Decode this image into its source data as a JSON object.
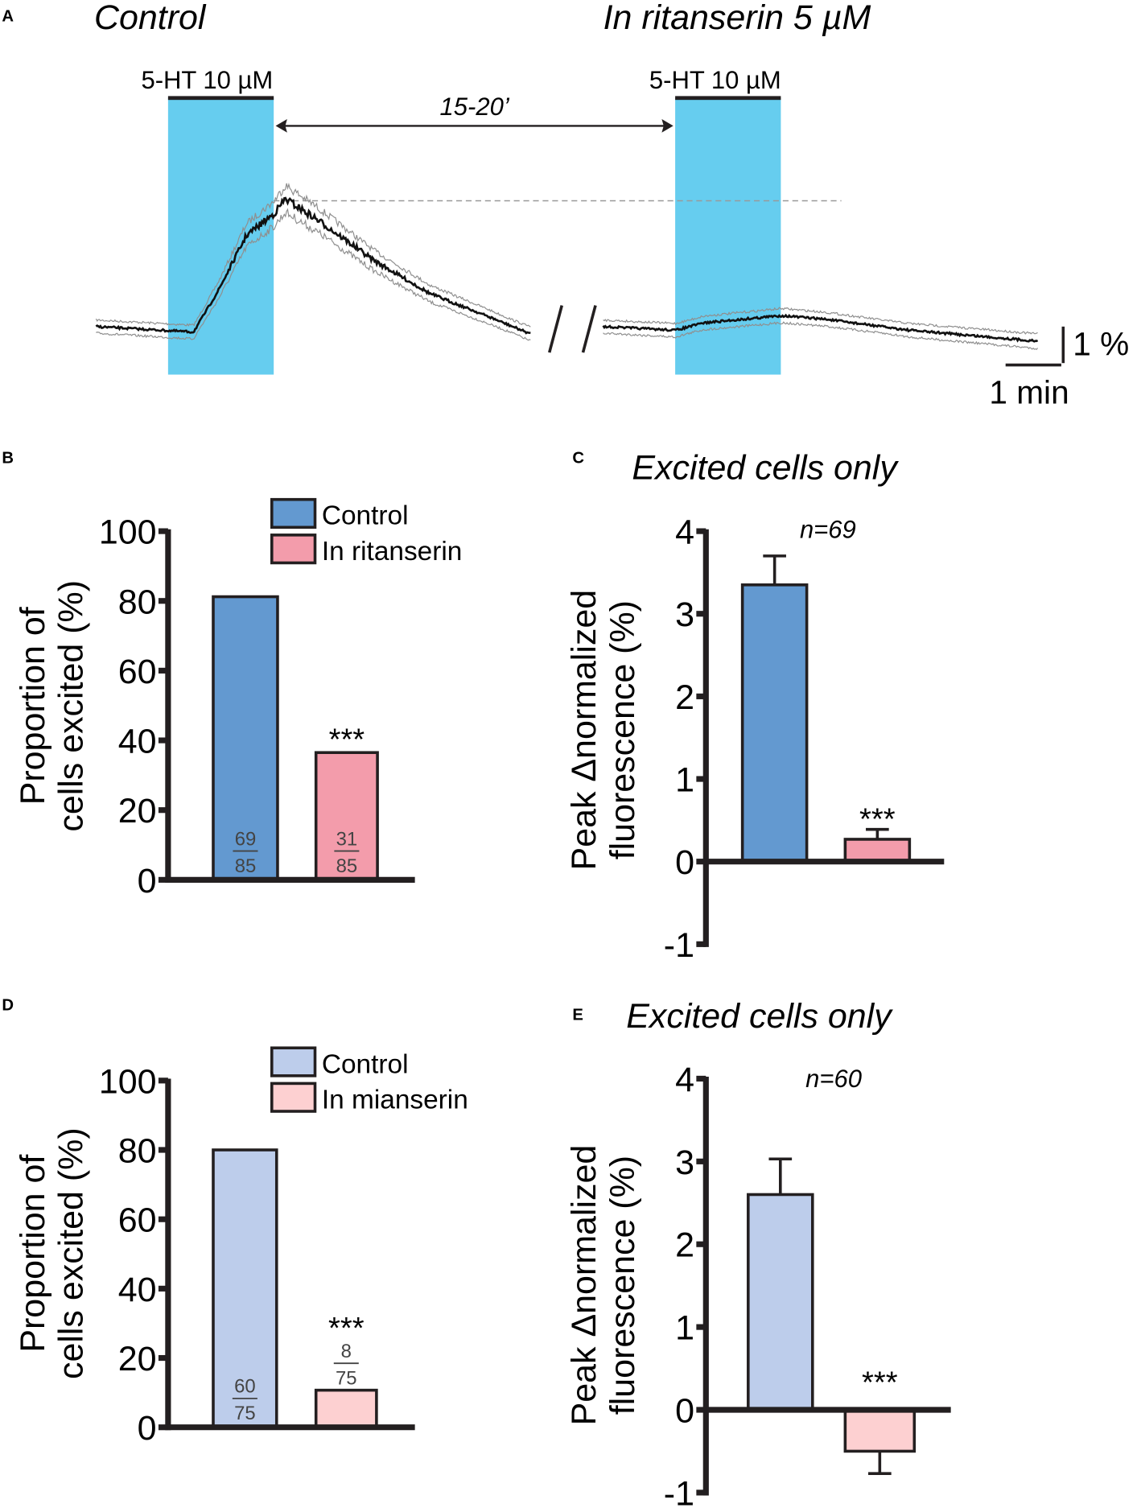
{
  "colors": {
    "cyan": "#66cdef",
    "blue": "#6399d0",
    "pink": "#f39cab",
    "lightblue": "#bdcdeb",
    "lightpink": "#fdd0d1",
    "trace": "#111111",
    "sem": "#8f8f8f"
  },
  "chart_data": [
    {
      "panel": "A",
      "type": "line",
      "panel_label": "A",
      "title_left": "Control",
      "title_right": "In ritanserin 5 µM",
      "drug_label_left": "5-HT 10 µM",
      "drug_label_right": "5-HT 10 µM",
      "interval_label": "15-20’",
      "scale_y_label": "1 %",
      "scale_x_label": "1 min",
      "break_mark": "//",
      "series": [
        {
          "name": "Control",
          "x_min": [
            0,
            1.75,
            2.2,
            2.7,
            3.2,
            3.4,
            4.0,
            5.0,
            6.0,
            7.0,
            7.8
          ],
          "y_pct": [
            0,
            -0.15,
            1.0,
            2.5,
            3.1,
            3.5,
            2.9,
            1.8,
            0.9,
            0.3,
            -0.2
          ]
        },
        {
          "name": "In ritanserin",
          "x_min": [
            0,
            1.3,
            1.8,
            3.2,
            4.0,
            5.5,
            7.8
          ],
          "y_pct": [
            0,
            -0.1,
            0.1,
            0.3,
            0.2,
            -0.1,
            -0.4
          ]
        }
      ],
      "drug_application_min": [
        1.3,
        3.2
      ]
    },
    {
      "panel": "B",
      "type": "bar",
      "panel_label": "B",
      "ylabel_line1": "Proportion of",
      "ylabel_line2": "cells excited (%)",
      "ylim": [
        0,
        100
      ],
      "yticks": [
        "0",
        "20",
        "40",
        "60",
        "80",
        "100"
      ],
      "categories": [
        "Control",
        "In ritanserin"
      ],
      "values": [
        81.2,
        36.5
      ],
      "fractions": [
        [
          "69",
          "85"
        ],
        [
          "31",
          "85"
        ]
      ],
      "significance": "***",
      "legend": [
        "Control",
        "In ritanserin"
      ]
    },
    {
      "panel": "C",
      "type": "bar",
      "panel_label": "C",
      "title": "Excited cells only",
      "n_label": "n=69",
      "ylabel_line1": "Peak Δnormalized",
      "ylabel_line2": "fluorescence (%)",
      "ylim": [
        -1,
        4
      ],
      "yticks": [
        "-1",
        "0",
        "1",
        "2",
        "3",
        "4"
      ],
      "categories": [
        "Control",
        "In ritanserin"
      ],
      "values": [
        3.35,
        0.27
      ],
      "errors": [
        0.35,
        0.12
      ],
      "significance": "***"
    },
    {
      "panel": "D",
      "type": "bar",
      "panel_label": "D",
      "ylabel_line1": "Proportion of",
      "ylabel_line2": "cells excited (%)",
      "ylim": [
        0,
        100
      ],
      "yticks": [
        "0",
        "20",
        "40",
        "60",
        "80",
        "100"
      ],
      "categories": [
        "Control",
        "In mianserin"
      ],
      "values": [
        80.0,
        10.7
      ],
      "fractions": [
        [
          "60",
          "75"
        ],
        [
          "8",
          "75"
        ]
      ],
      "significance": "***",
      "legend": [
        "Control",
        "In mianserin"
      ]
    },
    {
      "panel": "E",
      "type": "bar",
      "panel_label": "E",
      "title": "Excited cells only",
      "n_label": "n=60",
      "ylabel_line1": "Peak Δnormalized",
      "ylabel_line2": "fluorescence (%)",
      "ylim": [
        -1,
        4
      ],
      "yticks": [
        "-1",
        "0",
        "1",
        "2",
        "3",
        "4"
      ],
      "categories": [
        "Control",
        "In mianserin"
      ],
      "values": [
        2.6,
        -0.5
      ],
      "errors": [
        0.43,
        0.27
      ],
      "significance": "***"
    }
  ]
}
